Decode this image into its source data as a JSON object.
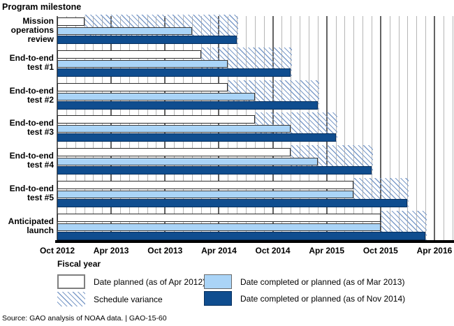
{
  "page": {
    "title": "Program milestone",
    "x_axis_label": "Fiscal year",
    "source": "Source: GAO analysis of NOAA data.  |  GAO-15-60"
  },
  "legend": {
    "planned": "Date planned (as of Apr 2012)",
    "mar2013": "Date completed or planned (as of Mar 2013)",
    "variance": "Schedule variance",
    "nov2014": "Date completed or planned (as of Nov 2014)"
  },
  "colors": {
    "white_bar": "#ffffff",
    "light_blue": "#aad4f7",
    "dark_blue": "#0f4d8f",
    "hatch_line": "#7d9cc9",
    "grid_minor": "#b6b6b6",
    "grid_major": "#636363",
    "axis": "#000000"
  },
  "chart_data": {
    "type": "bar",
    "subtype": "gantt-schedule-variance",
    "title": "Program milestone",
    "xlabel": "Fiscal year",
    "x_axis": {
      "start": "Oct 2012",
      "end_of_grid": "Jun 2016",
      "months_shown": 44,
      "tick_interval_months": 6,
      "ticks": [
        "Oct 2012",
        "Apr 2013",
        "Oct 2013",
        "Apr 2014",
        "Oct 2014",
        "Apr 2015",
        "Oct 2015",
        "Apr 2016"
      ],
      "tick_months": [
        0,
        6,
        12,
        18,
        24,
        30,
        36,
        42
      ]
    },
    "series_names": [
      "Date planned (as of Apr 2012)",
      "Date completed or planned (as of Mar 2013)",
      "Date completed or planned (as of Nov 2014)"
    ],
    "milestones": [
      {
        "label": "Mission operations review",
        "label_lines": [
          "Mission",
          "operations",
          "review"
        ],
        "planned_apr2012": {
          "date": "Jan 2013",
          "month": 3
        },
        "completed_mar2013": {
          "date": "Jan 2014",
          "month": 15
        },
        "completed_nov2014": {
          "date": "Jun 2014",
          "month": 20
        },
        "variance_months": 17
      },
      {
        "label": "End-to-end test #1",
        "label_lines": [
          "End-to-end",
          "test #1"
        ],
        "planned_apr2012": {
          "date": "Feb 2014",
          "month": 16
        },
        "completed_mar2013": {
          "date": "May 2014",
          "month": 19
        },
        "completed_nov2014": {
          "date": "Dec 2014",
          "month": 26
        },
        "variance_months": 10
      },
      {
        "label": "End-to-end test #2",
        "label_lines": [
          "End-to-end",
          "test #2"
        ],
        "planned_apr2012": {
          "date": "May 2014",
          "month": 19
        },
        "completed_mar2013": {
          "date": "Aug 2014",
          "month": 22
        },
        "completed_nov2014": {
          "date": "Mar 2015",
          "month": 29
        },
        "variance_months": 10
      },
      {
        "label": "End-to-end test #3",
        "label_lines": [
          "End-to-end",
          "test #3"
        ],
        "planned_apr2012": {
          "date": "Aug 2014",
          "month": 22
        },
        "completed_mar2013": {
          "date": "Dec 2014",
          "month": 26
        },
        "completed_nov2014": {
          "date": "May 2015",
          "month": 31
        },
        "variance_months": 9
      },
      {
        "label": "End-to-end test #4",
        "label_lines": [
          "End-to-end",
          "test #4"
        ],
        "planned_apr2012": {
          "date": "Dec 2014",
          "month": 26
        },
        "completed_mar2013": {
          "date": "Mar 2015",
          "month": 29
        },
        "completed_nov2014": {
          "date": "Sep 2015",
          "month": 35
        },
        "variance_months": 9
      },
      {
        "label": "End-to-end test #5",
        "label_lines": [
          "End-to-end",
          "test #5"
        ],
        "planned_apr2012": {
          "date": "Jul 2015",
          "month": 33
        },
        "completed_mar2013": {
          "date": "Jul 2015",
          "month": 33
        },
        "completed_nov2014": {
          "date": "Jan 2016",
          "month": 39
        },
        "variance_months": 6
      },
      {
        "label": "Anticipated launch",
        "label_lines": [
          "Anticipated",
          "launch"
        ],
        "planned_apr2012": {
          "date": "Oct 2015",
          "month": 36
        },
        "completed_mar2013": {
          "date": "Oct 2015",
          "month": 36
        },
        "completed_nov2014": {
          "date": "Mar 2016",
          "month": 41
        },
        "variance_months": 5
      }
    ]
  }
}
